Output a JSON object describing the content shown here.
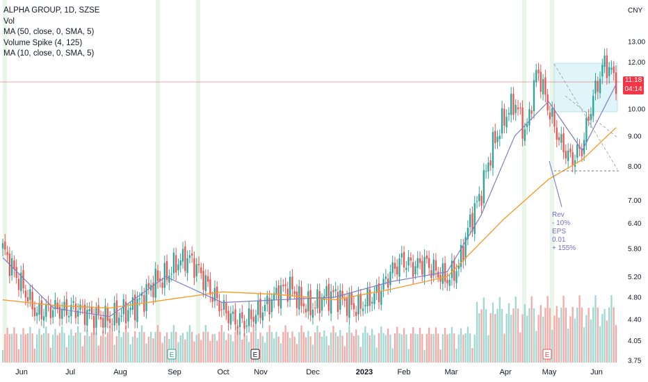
{
  "header": {
    "symbol_line": "ALPHA GROUP, 1D, SZSE",
    "indicators": [
      "Vol",
      "MA (50, close, 0, SMA, 5)",
      "Volume Spike (4, 125)",
      "MA (10, close, 0, SMA, 5)"
    ]
  },
  "currency": "CNY",
  "last_price": {
    "price": "11.18",
    "countdown": "04:14"
  },
  "annotation": [
    "Rev",
    "- 10%",
    "EPS",
    "0.01",
    "+ 155%"
  ],
  "earnings_marker": "E",
  "colors": {
    "up": "#26a69a",
    "down": "#ef5350",
    "ma10": "#7e7ec6",
    "ma50": "#f59d2a",
    "box": "#dff5f9",
    "spike_band": "#e8f5e9",
    "annotation": "#6f6fcf",
    "price_line": "#f23645"
  },
  "chart_data": {
    "type": "candlestick",
    "title": "ALPHA GROUP, 1D, SZSE",
    "y_scale": "log",
    "y_ticks": [
      3.75,
      4.05,
      4.4,
      4.8,
      5.2,
      5.8,
      6.4,
      7.0,
      8.0,
      9.0,
      10.0,
      12.0,
      13.0
    ],
    "y_tick_labels": [
      "3.75",
      "4.05",
      "4.40",
      "4.80",
      "5.20",
      "5.80",
      "6.40",
      "7.00",
      "8.00",
      "9.00",
      "10.00",
      "12.00",
      "13.00"
    ],
    "x_labels": [
      "Jun",
      "Jul",
      "Aug",
      "Sep",
      "Oct",
      "Nov",
      "Dec",
      "2023",
      "Feb",
      "Mar",
      "Apr",
      "May",
      "Jun"
    ],
    "ylim": [
      3.75,
      13.0
    ],
    "close_series": [
      [
        2022.41,
        5.8
      ],
      [
        2022.43,
        5.3
      ],
      [
        2022.45,
        4.9
      ],
      [
        2022.47,
        4.5
      ],
      [
        2022.5,
        4.6
      ],
      [
        2022.52,
        4.55
      ],
      [
        2022.54,
        4.6
      ],
      [
        2022.56,
        4.5
      ],
      [
        2022.58,
        4.45
      ],
      [
        2022.6,
        4.4
      ],
      [
        2022.62,
        4.5
      ],
      [
        2022.64,
        4.6
      ],
      [
        2022.66,
        4.8
      ],
      [
        2022.68,
        5.1
      ],
      [
        2022.7,
        5.2
      ],
      [
        2022.72,
        5.5
      ],
      [
        2022.74,
        5.6
      ],
      [
        2022.76,
        5.3
      ],
      [
        2022.78,
        4.9
      ],
      [
        2022.8,
        4.6
      ],
      [
        2022.82,
        4.4
      ],
      [
        2022.84,
        4.35
      ],
      [
        2022.86,
        4.5
      ],
      [
        2022.88,
        4.65
      ],
      [
        2022.9,
        4.9
      ],
      [
        2022.92,
        5.0
      ],
      [
        2022.94,
        4.7
      ],
      [
        2022.96,
        4.6
      ],
      [
        2022.98,
        4.8
      ],
      [
        2023.0,
        4.85
      ],
      [
        2023.02,
        4.7
      ],
      [
        2023.04,
        4.6
      ],
      [
        2023.06,
        4.75
      ],
      [
        2023.08,
        4.9
      ],
      [
        2023.1,
        5.3
      ],
      [
        2023.12,
        5.55
      ],
      [
        2023.14,
        5.4
      ],
      [
        2023.16,
        5.5
      ],
      [
        2023.18,
        5.3
      ],
      [
        2023.2,
        5.15
      ],
      [
        2023.22,
        5.4
      ],
      [
        2023.24,
        6.4
      ],
      [
        2023.26,
        7.2
      ],
      [
        2023.28,
        8.6
      ],
      [
        2023.3,
        9.6
      ],
      [
        2023.32,
        10.3
      ],
      [
        2023.34,
        9.0
      ],
      [
        2023.36,
        11.7
      ],
      [
        2023.38,
        10.0
      ],
      [
        2023.4,
        8.8
      ],
      [
        2023.42,
        8.2
      ],
      [
        2023.44,
        8.6
      ],
      [
        2023.46,
        10.5
      ],
      [
        2023.48,
        12.0
      ],
      [
        2023.5,
        11.18
      ]
    ],
    "ma10": [
      [
        2022.41,
        5.6
      ],
      [
        2022.5,
        4.6
      ],
      [
        2022.6,
        4.45
      ],
      [
        2022.7,
        5.2
      ],
      [
        2022.8,
        4.7
      ],
      [
        2022.9,
        4.75
      ],
      [
        2023.0,
        4.8
      ],
      [
        2023.1,
        5.1
      ],
      [
        2023.2,
        5.3
      ],
      [
        2023.26,
        6.6
      ],
      [
        2023.32,
        9.0
      ],
      [
        2023.38,
        10.3
      ],
      [
        2023.44,
        8.5
      ],
      [
        2023.5,
        11.0
      ]
    ],
    "ma50": [
      [
        2022.41,
        4.75
      ],
      [
        2022.5,
        4.65
      ],
      [
        2022.6,
        4.6
      ],
      [
        2022.7,
        4.75
      ],
      [
        2022.8,
        4.9
      ],
      [
        2022.9,
        4.85
      ],
      [
        2023.0,
        4.75
      ],
      [
        2023.1,
        4.95
      ],
      [
        2023.2,
        5.2
      ],
      [
        2023.3,
        6.5
      ],
      [
        2023.38,
        7.6
      ],
      [
        2023.44,
        8.2
      ],
      [
        2023.5,
        9.3
      ]
    ],
    "grid": false,
    "legend_placement": "top-left"
  }
}
